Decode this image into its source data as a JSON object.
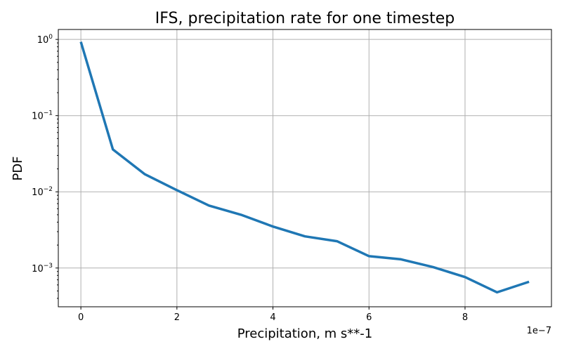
{
  "chart_data": {
    "type": "line",
    "title": "IFS, precipitation rate for one timestep",
    "xlabel": "Precipitation, m s**-1",
    "ylabel": "PDF",
    "x_offset_label": "1e−7",
    "yscale": "log",
    "grid": true,
    "xlim": [
      -4.7e-08,
      9.8e-07
    ],
    "ylim": [
      0.00031,
      1.35
    ],
    "x_ticks": [
      {
        "value": 0,
        "label": "0"
      },
      {
        "value": 2e-07,
        "label": "2"
      },
      {
        "value": 4e-07,
        "label": "4"
      },
      {
        "value": 6e-07,
        "label": "6"
      },
      {
        "value": 8e-07,
        "label": "8"
      }
    ],
    "y_ticks": [
      {
        "value": 1,
        "base": "10",
        "exp": "0"
      },
      {
        "value": 0.1,
        "base": "10",
        "exp": "−1"
      },
      {
        "value": 0.01,
        "base": "10",
        "exp": "−2"
      },
      {
        "value": 0.001,
        "base": "10",
        "exp": "−3"
      }
    ],
    "series": [
      {
        "color": "#1f77b4",
        "x": [
          0,
          6.67e-08,
          1.333e-07,
          2e-07,
          2.667e-07,
          3.333e-07,
          4e-07,
          4.667e-07,
          5.333e-07,
          6e-07,
          6.667e-07,
          7.333e-07,
          8e-07,
          8.667e-07,
          9.333e-07
        ],
        "y": [
          0.93,
          0.036,
          0.017,
          0.0105,
          0.0066,
          0.005,
          0.0035,
          0.0026,
          0.00225,
          0.00143,
          0.0013,
          0.00103,
          0.00076,
          0.00048,
          0.00066
        ]
      }
    ]
  }
}
